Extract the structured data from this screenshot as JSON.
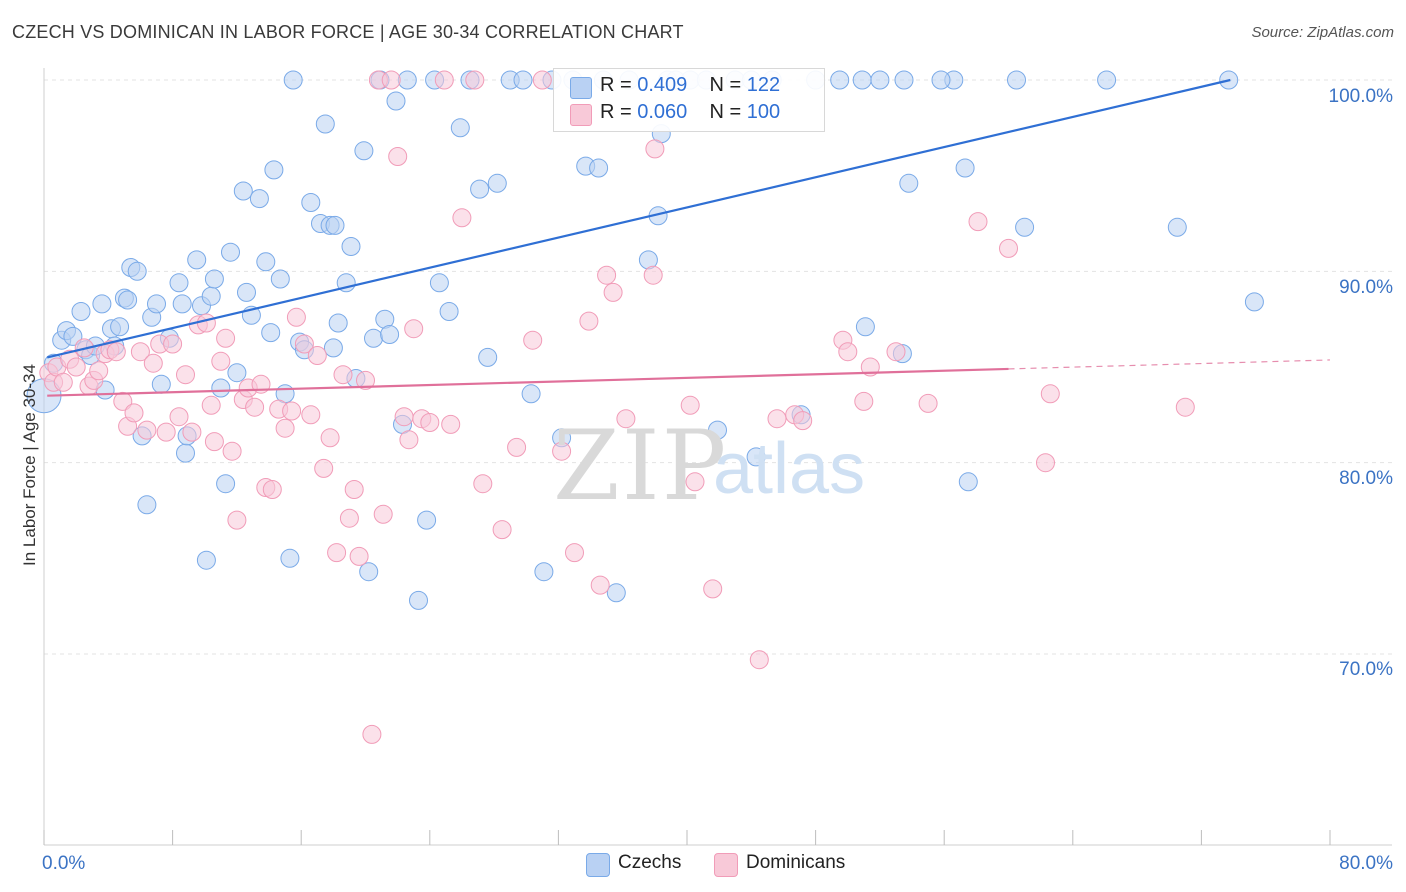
{
  "title": "CZECH VS DOMINICAN IN LABOR FORCE | AGE 30-34 CORRELATION CHART",
  "source": "Source: ZipAtlas.com",
  "watermark": {
    "zip": "ZIP",
    "atlas": "atlas"
  },
  "colors": {
    "czech": "#7aaae8",
    "czech_fill": "#b9d1f3",
    "czech_line": "#2f6fd4",
    "dominican": "#f19cb8",
    "dominican_fill": "#f8c9d8",
    "dominican_line": "#e0709a",
    "grid": "#e3e3e3",
    "axis_text": "#3b73c4"
  },
  "stats": {
    "czech": {
      "r_label": "R = ",
      "r": "0.409",
      "n_label": "N = ",
      "n": "122"
    },
    "dominican": {
      "r_label": "R = ",
      "r": "0.060",
      "n_label": "N = ",
      "n": "100"
    }
  },
  "legend": {
    "czech": "Czechs",
    "dominican": "Dominicans"
  },
  "axes": {
    "ylabel": "In Labor Force | Age 30-34",
    "x_min_label": "0.0%",
    "x_max_label": "80.0%",
    "y_ticks": [
      {
        "value": 100,
        "label": "100.0%"
      },
      {
        "value": 90,
        "label": "90.0%"
      },
      {
        "value": 80,
        "label": "80.0%"
      },
      {
        "value": 70,
        "label": "70.0%"
      }
    ]
  },
  "chart_data": {
    "type": "scatter",
    "title": "CZECH VS DOMINICAN IN LABOR FORCE | AGE 30-34 CORRELATION CHART",
    "xlabel": "",
    "ylabel": "In Labor Force | Age 30-34",
    "xlim": [
      0,
      80
    ],
    "ylim": [
      60.5,
      101.5
    ],
    "grid": true,
    "legend_position": "bottom-center",
    "series": [
      {
        "name": "Czechs",
        "r": 0.409,
        "n": 122,
        "trend": {
          "x_start": 0.2,
          "y_start": 85.5,
          "x_end": 73.8,
          "y_end": 100.0,
          "dashed_to_x": null
        },
        "points": [
          [
            0.0,
            83.5
          ],
          [
            0.6,
            85.2
          ],
          [
            1.1,
            86.4
          ],
          [
            1.4,
            86.9
          ],
          [
            1.8,
            86.6
          ],
          [
            2.3,
            87.9
          ],
          [
            2.6,
            85.9
          ],
          [
            2.9,
            85.6
          ],
          [
            3.2,
            86.1
          ],
          [
            3.6,
            88.3
          ],
          [
            3.8,
            83.8
          ],
          [
            4.2,
            87.0
          ],
          [
            4.4,
            86.1
          ],
          [
            4.7,
            87.1
          ],
          [
            5.0,
            88.6
          ],
          [
            5.2,
            88.5
          ],
          [
            5.4,
            90.2
          ],
          [
            5.8,
            90.0
          ],
          [
            6.1,
            81.4
          ],
          [
            6.4,
            77.8
          ],
          [
            6.7,
            87.6
          ],
          [
            7.0,
            88.3
          ],
          [
            7.3,
            84.1
          ],
          [
            7.8,
            86.5
          ],
          [
            8.4,
            89.4
          ],
          [
            8.6,
            88.3
          ],
          [
            8.8,
            80.5
          ],
          [
            8.9,
            81.4
          ],
          [
            9.5,
            90.6
          ],
          [
            9.8,
            88.2
          ],
          [
            10.1,
            74.9
          ],
          [
            10.4,
            88.7
          ],
          [
            10.6,
            89.6
          ],
          [
            11.0,
            83.9
          ],
          [
            11.3,
            78.9
          ],
          [
            11.6,
            91.0
          ],
          [
            12.0,
            84.7
          ],
          [
            12.4,
            94.2
          ],
          [
            12.6,
            88.9
          ],
          [
            12.9,
            87.7
          ],
          [
            13.4,
            93.8
          ],
          [
            13.8,
            90.5
          ],
          [
            14.1,
            86.8
          ],
          [
            14.3,
            95.3
          ],
          [
            14.7,
            89.6
          ],
          [
            15.0,
            83.6
          ],
          [
            15.3,
            75.0
          ],
          [
            15.5,
            100.0
          ],
          [
            15.9,
            86.3
          ],
          [
            16.2,
            85.9
          ],
          [
            16.6,
            93.6
          ],
          [
            17.2,
            92.5
          ],
          [
            17.5,
            97.7
          ],
          [
            17.8,
            92.4
          ],
          [
            18.0,
            86.0
          ],
          [
            18.1,
            92.4
          ],
          [
            18.3,
            87.3
          ],
          [
            18.8,
            89.4
          ],
          [
            19.1,
            91.3
          ],
          [
            19.4,
            84.4
          ],
          [
            19.9,
            96.3
          ],
          [
            20.2,
            74.3
          ],
          [
            20.5,
            86.5
          ],
          [
            20.9,
            100.0
          ],
          [
            21.2,
            87.5
          ],
          [
            21.5,
            86.7
          ],
          [
            21.9,
            98.9
          ],
          [
            22.3,
            82.0
          ],
          [
            22.6,
            100.0
          ],
          [
            23.3,
            72.8
          ],
          [
            23.8,
            77.0
          ],
          [
            24.3,
            100.0
          ],
          [
            24.6,
            89.4
          ],
          [
            25.2,
            87.9
          ],
          [
            25.9,
            97.5
          ],
          [
            26.5,
            100.0
          ],
          [
            27.1,
            94.3
          ],
          [
            27.6,
            85.5
          ],
          [
            28.2,
            94.6
          ],
          [
            29.0,
            100.0
          ],
          [
            29.8,
            100.0
          ],
          [
            30.3,
            83.6
          ],
          [
            31.1,
            74.3
          ],
          [
            31.6,
            100.0
          ],
          [
            32.2,
            81.3
          ],
          [
            32.9,
            100.0
          ],
          [
            33.7,
            95.5
          ],
          [
            34.5,
            95.4
          ],
          [
            34.8,
            100.0
          ],
          [
            35.6,
            73.2
          ],
          [
            36.4,
            100.0
          ],
          [
            37.6,
            90.6
          ],
          [
            38.2,
            92.9
          ],
          [
            38.4,
            97.2
          ],
          [
            38.8,
            100.0
          ],
          [
            39.3,
            100.0
          ],
          [
            40.2,
            100.0
          ],
          [
            41.2,
            100.0
          ],
          [
            41.9,
            81.7
          ],
          [
            43.0,
            100.0
          ],
          [
            44.0,
            100.0
          ],
          [
            44.3,
            80.3
          ],
          [
            45.3,
            100.0
          ],
          [
            47.1,
            82.5
          ],
          [
            48.0,
            100.0
          ],
          [
            49.5,
            100.0
          ],
          [
            50.9,
            100.0
          ],
          [
            51.1,
            87.1
          ],
          [
            52.0,
            100.0
          ],
          [
            53.4,
            85.7
          ],
          [
            53.8,
            94.6
          ],
          [
            56.6,
            100.0
          ],
          [
            57.3,
            95.4
          ],
          [
            57.5,
            79.0
          ],
          [
            60.5,
            100.0
          ],
          [
            61.0,
            92.3
          ],
          [
            66.1,
            100.0
          ],
          [
            70.5,
            92.3
          ],
          [
            73.7,
            100.0
          ],
          [
            75.3,
            88.4
          ],
          [
            55.8,
            100.0
          ],
          [
            53.5,
            100.0
          ]
        ]
      },
      {
        "name": "Dominicans",
        "r": 0.06,
        "n": 100,
        "trend": {
          "x_start": 0.2,
          "y_start": 83.5,
          "x_end": 60.0,
          "y_end": 84.9,
          "dashed_to_x": 80.0
        },
        "points": [
          [
            0.3,
            84.7
          ],
          [
            0.6,
            84.2
          ],
          [
            0.8,
            85.0
          ],
          [
            1.2,
            84.2
          ],
          [
            1.6,
            85.4
          ],
          [
            2.0,
            85.0
          ],
          [
            2.5,
            86.0
          ],
          [
            2.8,
            84.0
          ],
          [
            3.1,
            84.3
          ],
          [
            3.4,
            84.8
          ],
          [
            3.8,
            85.7
          ],
          [
            4.1,
            85.9
          ],
          [
            4.5,
            85.8
          ],
          [
            4.9,
            83.2
          ],
          [
            5.2,
            81.9
          ],
          [
            5.6,
            82.6
          ],
          [
            6.0,
            85.8
          ],
          [
            6.4,
            81.7
          ],
          [
            6.8,
            85.2
          ],
          [
            7.2,
            86.2
          ],
          [
            7.6,
            81.6
          ],
          [
            8.0,
            86.2
          ],
          [
            8.4,
            82.4
          ],
          [
            8.8,
            84.6
          ],
          [
            9.2,
            81.6
          ],
          [
            9.6,
            87.2
          ],
          [
            10.1,
            87.3
          ],
          [
            10.4,
            83.0
          ],
          [
            10.6,
            81.1
          ],
          [
            11.0,
            85.3
          ],
          [
            11.3,
            86.5
          ],
          [
            11.7,
            80.6
          ],
          [
            12.0,
            77.0
          ],
          [
            12.4,
            83.3
          ],
          [
            12.7,
            83.9
          ],
          [
            13.1,
            82.9
          ],
          [
            13.5,
            84.1
          ],
          [
            13.8,
            78.7
          ],
          [
            14.2,
            78.6
          ],
          [
            14.6,
            82.8
          ],
          [
            15.0,
            81.8
          ],
          [
            15.4,
            82.7
          ],
          [
            15.7,
            87.6
          ],
          [
            16.2,
            86.2
          ],
          [
            16.6,
            82.5
          ],
          [
            17.0,
            85.6
          ],
          [
            17.4,
            79.7
          ],
          [
            17.8,
            81.3
          ],
          [
            18.2,
            75.3
          ],
          [
            18.6,
            84.6
          ],
          [
            19.0,
            77.1
          ],
          [
            19.3,
            78.6
          ],
          [
            19.6,
            75.1
          ],
          [
            20.0,
            84.3
          ],
          [
            20.4,
            65.8
          ],
          [
            20.8,
            100.0
          ],
          [
            21.1,
            77.3
          ],
          [
            21.6,
            100.0
          ],
          [
            22.0,
            96.0
          ],
          [
            22.4,
            82.4
          ],
          [
            22.7,
            81.2
          ],
          [
            23.0,
            87.0
          ],
          [
            23.5,
            82.3
          ],
          [
            24.0,
            82.1
          ],
          [
            24.9,
            100.0
          ],
          [
            25.3,
            82.0
          ],
          [
            26.0,
            92.8
          ],
          [
            26.8,
            100.0
          ],
          [
            27.3,
            78.9
          ],
          [
            28.5,
            76.5
          ],
          [
            29.4,
            80.8
          ],
          [
            30.4,
            86.4
          ],
          [
            31.0,
            100.0
          ],
          [
            32.2,
            80.6
          ],
          [
            33.0,
            75.3
          ],
          [
            33.9,
            87.4
          ],
          [
            34.6,
            73.6
          ],
          [
            35.0,
            89.8
          ],
          [
            35.4,
            88.9
          ],
          [
            36.2,
            82.3
          ],
          [
            37.9,
            89.8
          ],
          [
            38.0,
            96.4
          ],
          [
            40.2,
            83.0
          ],
          [
            40.5,
            79.0
          ],
          [
            41.6,
            73.4
          ],
          [
            44.5,
            69.7
          ],
          [
            45.6,
            82.3
          ],
          [
            46.7,
            82.5
          ],
          [
            47.2,
            82.2
          ],
          [
            49.7,
            86.4
          ],
          [
            50.0,
            85.8
          ],
          [
            51.0,
            83.2
          ],
          [
            51.4,
            85.0
          ],
          [
            53.0,
            85.8
          ],
          [
            55.0,
            83.1
          ],
          [
            58.1,
            92.6
          ],
          [
            60.0,
            91.2
          ],
          [
            62.3,
            80.0
          ],
          [
            62.6,
            83.6
          ],
          [
            71.0,
            82.9
          ]
        ]
      }
    ]
  }
}
